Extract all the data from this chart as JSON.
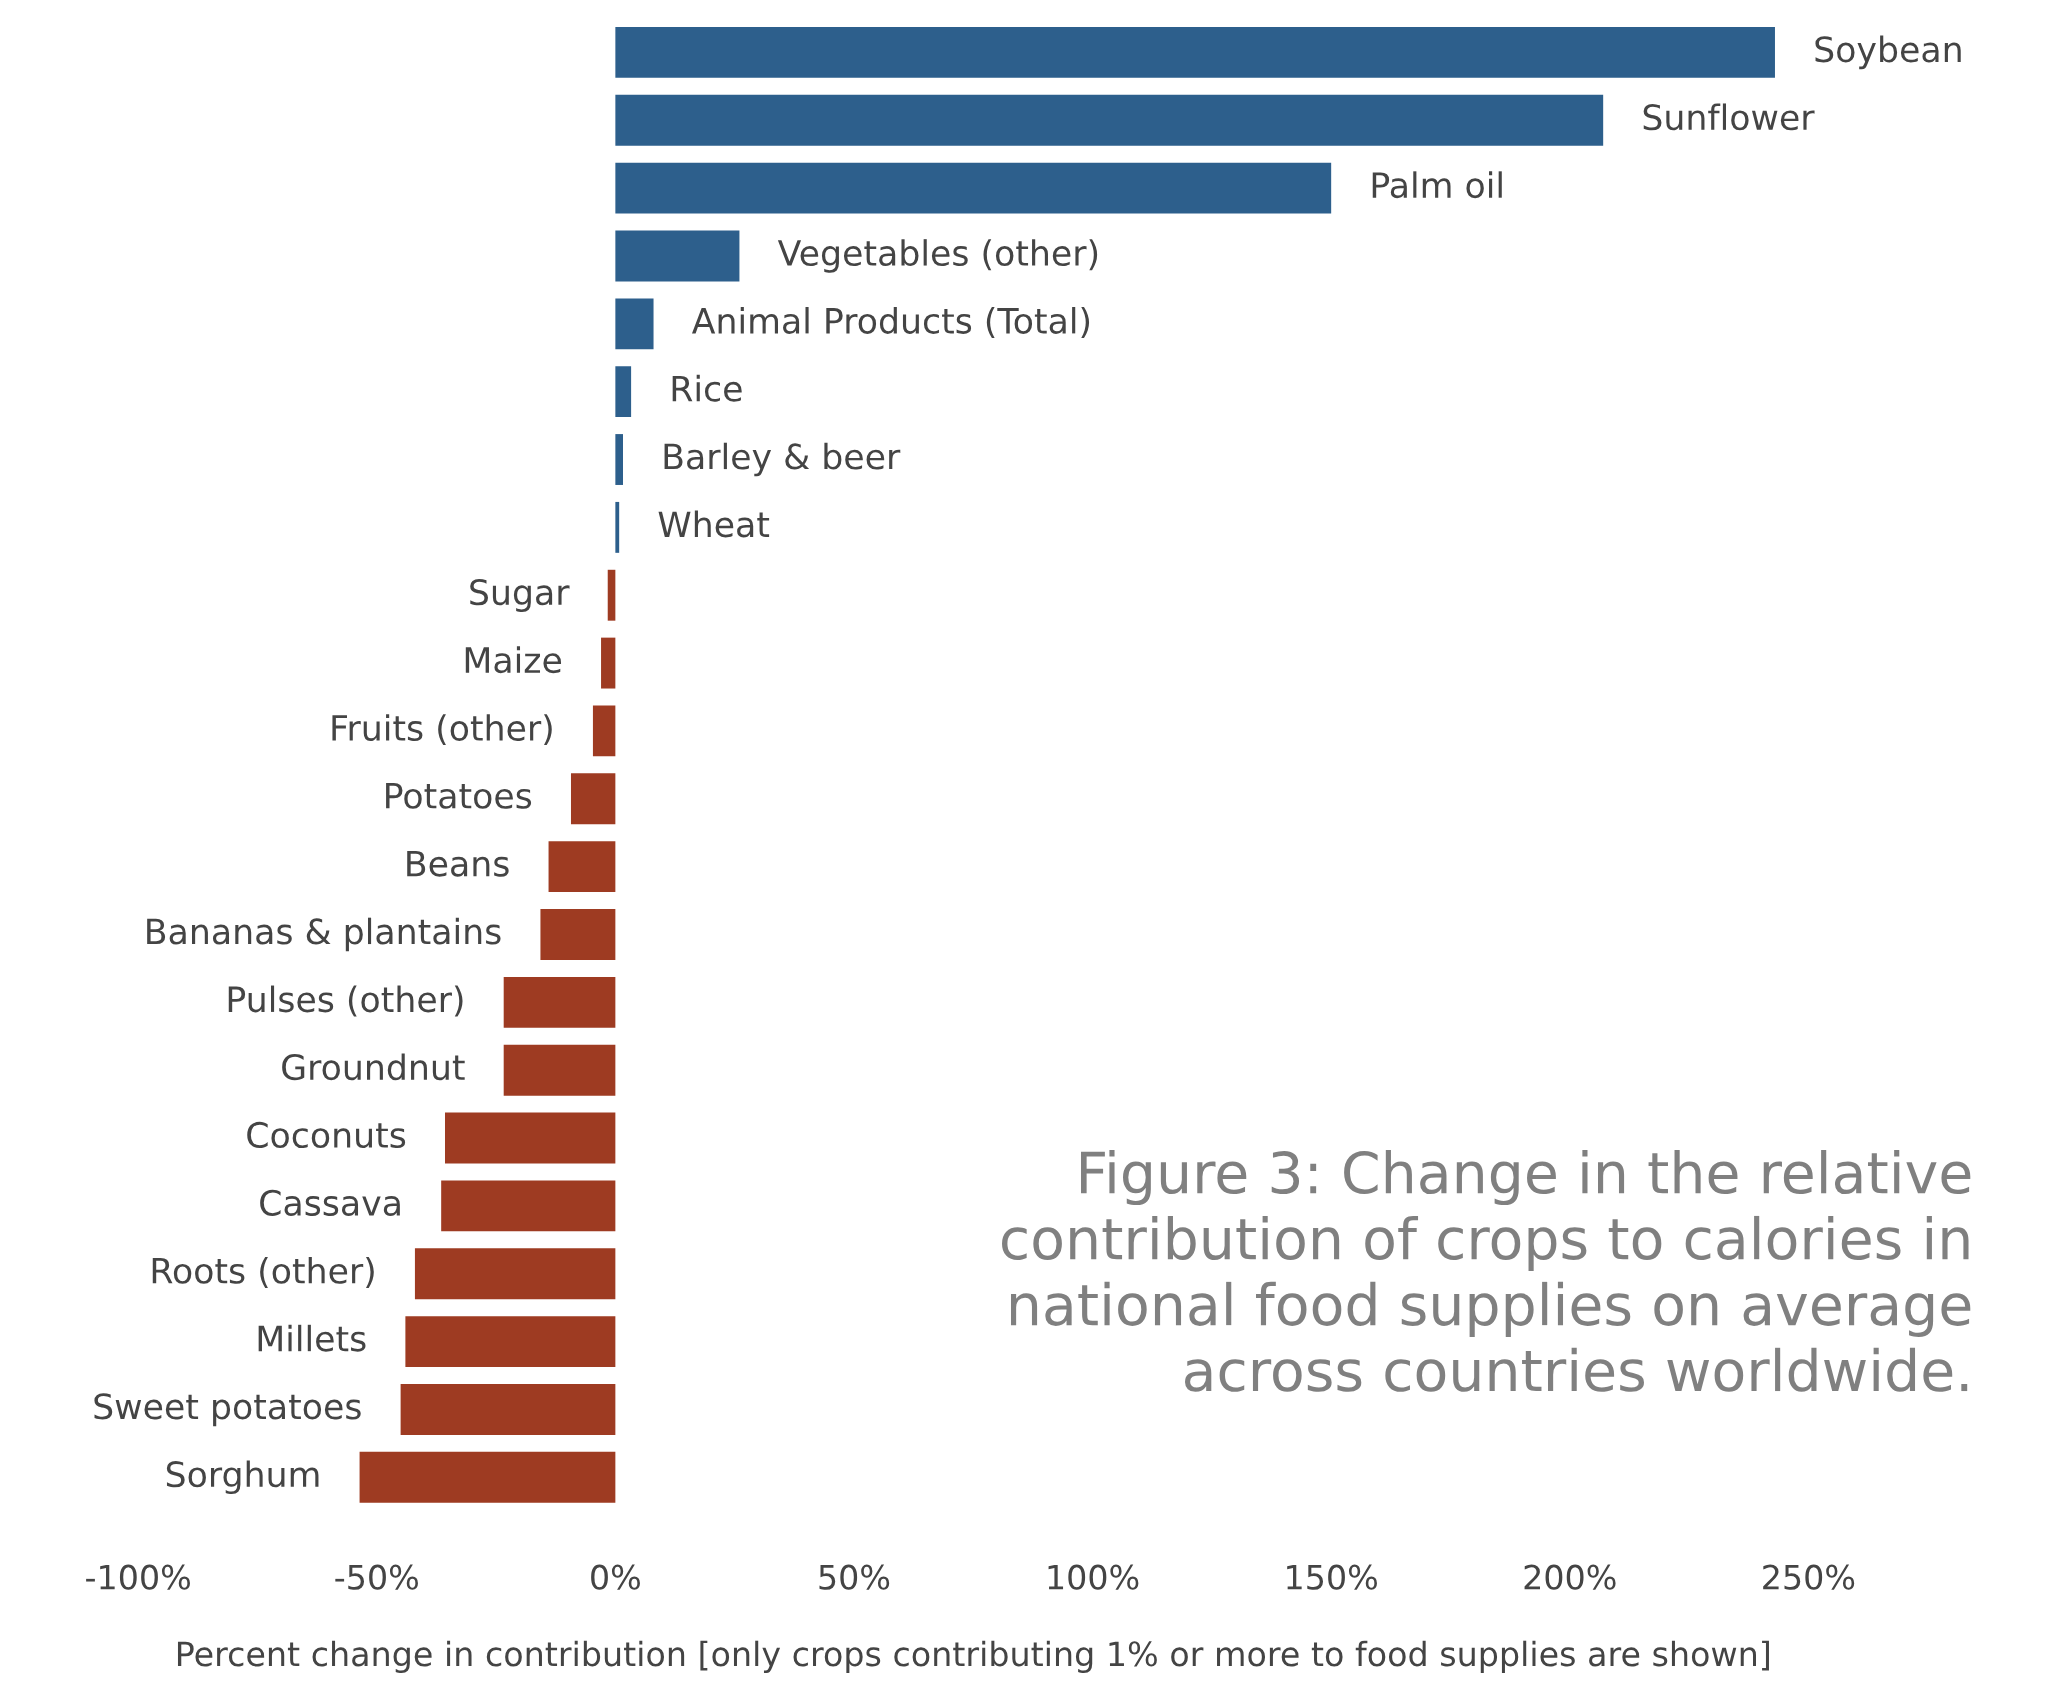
{
  "chart_data": {
    "type": "bar",
    "orientation": "horizontal",
    "title": "Figure 3: Change in the relative contribution of crops to calories in national food supplies on average across countries worldwide.",
    "xlabel": "Percent change in contribution [only crops contributing 1% or more to food supplies are shown]",
    "categories": [
      "Soybean",
      "Sunflower",
      "Palm oil",
      "Vegetables (other)",
      "Animal Products (Total)",
      "Rice",
      "Barley & beer",
      "Wheat",
      "Sugar",
      "Maize",
      "Fruits (other)",
      "Potatoes",
      "Beans",
      "Bananas & plantains",
      "Pulses (other)",
      "Groundnut",
      "Coconuts",
      "Cassava",
      "Roots (other)",
      "Millets",
      "Sweet potatoes",
      "Sorghum"
    ],
    "values": [
      243,
      207,
      150,
      26,
      8,
      3.3,
      1.6,
      0.8,
      -1.6,
      -3,
      -4.7,
      -9.3,
      -14,
      -15.7,
      -23.4,
      -23.4,
      -35.7,
      -36.5,
      -42,
      -44,
      -45,
      -53.6
    ],
    "colors": [
      "#2d5f8c",
      "#2d5f8c",
      "#2d5f8c",
      "#2d5f8c",
      "#2d5f8c",
      "#2d5f8c",
      "#2d5f8c",
      "#2d5f8c",
      "#9e3b22",
      "#9e3b22",
      "#9e3b22",
      "#9e3b22",
      "#9e3b22",
      "#9e3b22",
      "#9e3b22",
      "#9e3b22",
      "#9e3b22",
      "#9e3b22",
      "#9e3b22",
      "#9e3b22",
      "#9e3b22",
      "#9e3b22"
    ],
    "xlim": [
      -100,
      250
    ],
    "xticks": [
      {
        "value": -100,
        "label": "-100%"
      },
      {
        "value": -50,
        "label": "-50%"
      },
      {
        "value": 0,
        "label": "0%"
      },
      {
        "value": 50,
        "label": "50%"
      },
      {
        "value": 100,
        "label": "100%"
      },
      {
        "value": 150,
        "label": "150%"
      },
      {
        "value": 200,
        "label": "200%"
      },
      {
        "value": 250,
        "label": "250%"
      }
    ],
    "grid": false,
    "legend": false
  }
}
